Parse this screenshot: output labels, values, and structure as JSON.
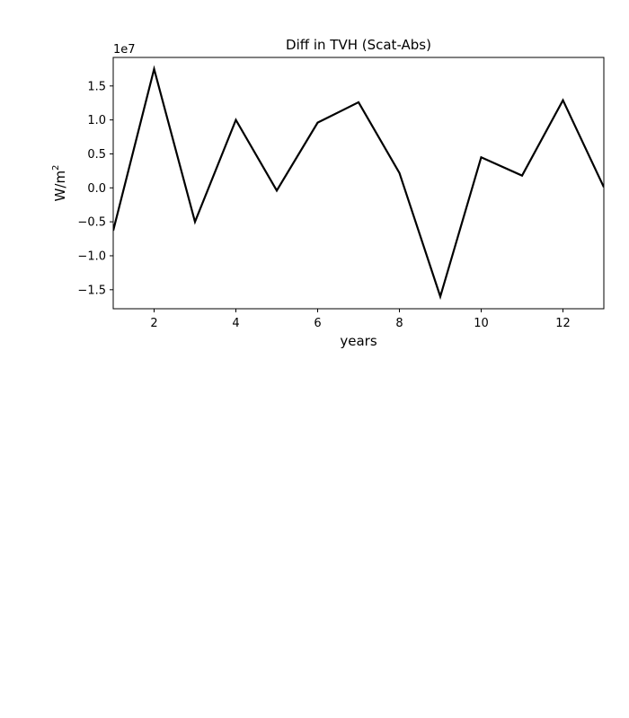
{
  "chart_data": {
    "type": "line",
    "title": "Diff in TVH (Scat-Abs)",
    "xlabel": "years",
    "ylabel_base": "W/m",
    "ylabel_sup": "2",
    "offset_text": "1e7",
    "xlim": [
      1,
      13
    ],
    "ylim": [
      -17800000.0,
      19200000.0
    ],
    "xticks": [
      2,
      4,
      6,
      8,
      10,
      12
    ],
    "xtick_labels": [
      "2",
      "4",
      "6",
      "8",
      "10",
      "12"
    ],
    "yticks": [
      -15000000.0,
      -10000000.0,
      -5000000.0,
      0,
      5000000.0,
      10000000.0,
      15000000.0
    ],
    "ytick_labels": [
      "−1.5",
      "−1.0",
      "−0.5",
      "0.0",
      "0.5",
      "1.0",
      "1.5"
    ],
    "grid": false,
    "line_color": "#000000",
    "series": [
      {
        "x": [
          1,
          2,
          3,
          4,
          5,
          6,
          7,
          8,
          9,
          10,
          11,
          12,
          13
        ],
        "values": [
          -6300000.0,
          17500000.0,
          -5000000.0,
          10000000.0,
          -400000.0,
          9600000.0,
          12600000.0,
          2200000.0,
          -16000000.0,
          4500000.0,
          1800000.0,
          12900000.0,
          100000.0
        ]
      }
    ]
  }
}
